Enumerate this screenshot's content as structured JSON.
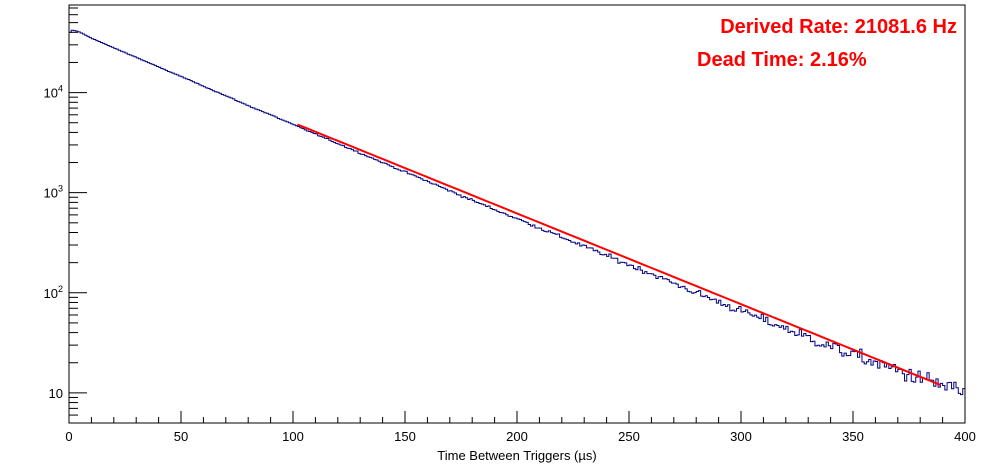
{
  "chart_data": {
    "type": "line",
    "title": "",
    "xlabel": "Time Between Triggers (µs)",
    "ylabel": "",
    "xlim": [
      0,
      400
    ],
    "ylim": [
      5,
      75000
    ],
    "yscale": "log",
    "grid": false,
    "x_ticks": [
      0,
      50,
      100,
      150,
      200,
      250,
      300,
      350,
      400
    ],
    "y_ticks": [
      {
        "value": 10,
        "base": "10",
        "exp": ""
      },
      {
        "value": 100,
        "base": "10",
        "exp": "2"
      },
      {
        "value": 1000,
        "base": "10",
        "exp": "3"
      },
      {
        "value": 10000,
        "base": "10",
        "exp": "4"
      }
    ],
    "annotations": [
      {
        "text": "Derived Rate: 21081.6 Hz",
        "color": "#ff0000",
        "position": "top-right"
      },
      {
        "text": "Dead Time: 2.16%",
        "color": "#ff0000",
        "position": "top-right"
      }
    ],
    "series": [
      {
        "kind": "histogram",
        "color": "#000080",
        "points": [
          [
            0,
            38000
          ],
          [
            1,
            42000
          ],
          [
            3,
            41500
          ],
          [
            5,
            40000
          ],
          [
            10,
            35000
          ],
          [
            20,
            28000
          ],
          [
            30,
            22500
          ],
          [
            40,
            18000
          ],
          [
            50,
            14500
          ],
          [
            60,
            11600
          ],
          [
            70,
            9300
          ],
          [
            80,
            7400
          ],
          [
            90,
            6000
          ],
          [
            100,
            4800
          ],
          [
            120,
            3100
          ],
          [
            140,
            2000
          ],
          [
            160,
            1300
          ],
          [
            180,
            840
          ],
          [
            200,
            550
          ],
          [
            220,
            360
          ],
          [
            240,
            235
          ],
          [
            260,
            155
          ],
          [
            280,
            100
          ],
          [
            300,
            66
          ],
          [
            320,
            44
          ],
          [
            340,
            29
          ],
          [
            360,
            20
          ],
          [
            380,
            14
          ],
          [
            390,
            12
          ],
          [
            400,
            10
          ]
        ]
      },
      {
        "kind": "fit",
        "color": "#ff0000",
        "x_range": [
          102,
          389
        ],
        "points": [
          [
            102,
            4800
          ],
          [
            389,
            12
          ]
        ]
      }
    ]
  }
}
